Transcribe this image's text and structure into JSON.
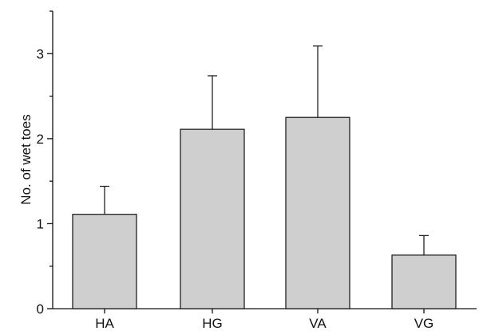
{
  "chart_data": {
    "type": "bar",
    "categories": [
      "HA",
      "HG",
      "VA",
      "VG"
    ],
    "values": [
      1.11,
      2.11,
      2.25,
      0.63
    ],
    "error_upper": [
      1.44,
      2.74,
      3.09,
      0.86
    ],
    "ylabel": "No. of wet toes",
    "xlabel": "",
    "ylim": [
      0,
      3.5
    ],
    "yticks": [
      0,
      1,
      2,
      3
    ],
    "ytick_labels": [
      "0",
      "1",
      "2",
      "3"
    ],
    "grid": false,
    "colors": {
      "bar": "#cfcfcf",
      "stroke": "#111111"
    }
  }
}
